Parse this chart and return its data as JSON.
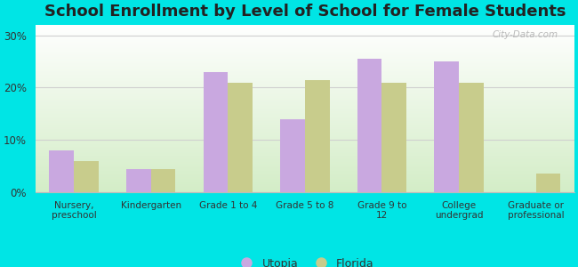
{
  "title": "School Enrollment by Level of School for Female Students",
  "categories": [
    "Nursery,\npreschool",
    "Kindergarten",
    "Grade 1 to 4",
    "Grade 5 to 8",
    "Grade 9 to\n12",
    "College\nundergrad",
    "Graduate or\nprofessional"
  ],
  "utopia_values": [
    8.0,
    4.5,
    23.0,
    14.0,
    25.5,
    25.0,
    0.0
  ],
  "florida_values": [
    6.0,
    4.5,
    21.0,
    21.5,
    21.0,
    21.0,
    3.5
  ],
  "utopia_color": "#c9a8e0",
  "florida_color": "#c8cc8c",
  "ylim": [
    0,
    32
  ],
  "yticks": [
    0,
    10,
    20,
    30
  ],
  "ytick_labels": [
    "0%",
    "10%",
    "20%",
    "30%"
  ],
  "background_color": "#00e5e5",
  "legend_labels": [
    "Utopia",
    "Florida"
  ],
  "watermark": "City-Data.com",
  "title_fontsize": 13,
  "bar_width": 0.32,
  "grid_color": "#d0d0d0",
  "title_color": "#222222"
}
